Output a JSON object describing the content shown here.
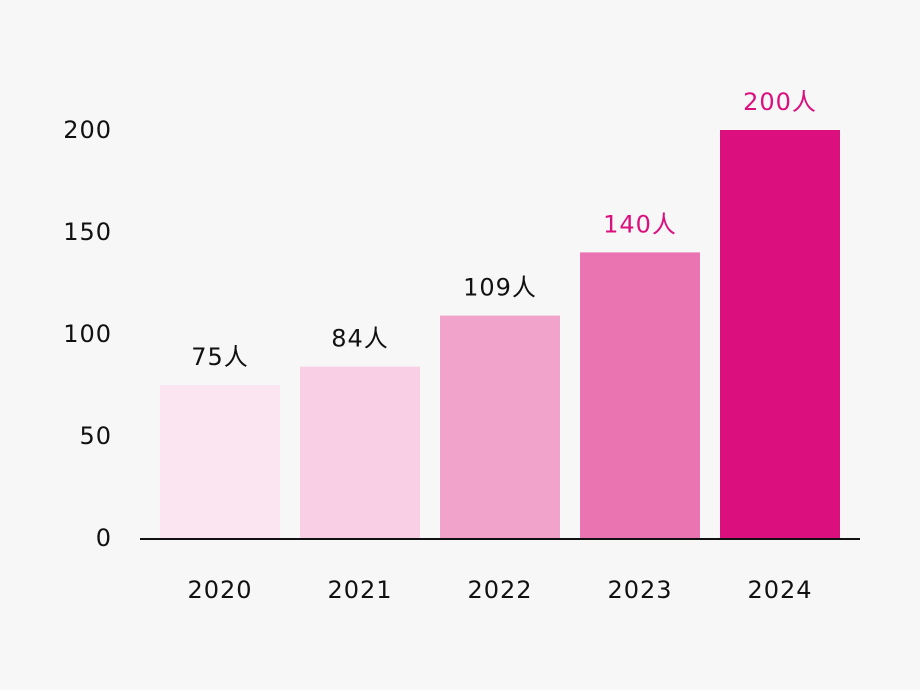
{
  "chart_data": {
    "type": "bar",
    "categories": [
      "2020",
      "2021",
      "2022",
      "2023",
      "2024"
    ],
    "values": [
      75,
      84,
      109,
      140,
      200
    ],
    "data_labels": [
      "75人",
      "84人",
      "109人",
      "140人",
      "200人"
    ],
    "y_ticks": [
      0,
      50,
      100,
      150,
      200
    ],
    "ylim": [
      0,
      200
    ],
    "title": "",
    "xlabel": "",
    "ylabel": "",
    "grid": false,
    "legend": "none",
    "colors": {
      "bars": [
        "#fbe5f1",
        "#f8cfe4",
        "#f1a3cc",
        "#ea73b1",
        "#dc0f7e"
      ],
      "labels": [
        "#111111",
        "#111111",
        "#111111",
        "#dc0f7e",
        "#dc0f7e"
      ],
      "axis": "#111111",
      "background": "#f7f7f7"
    }
  }
}
